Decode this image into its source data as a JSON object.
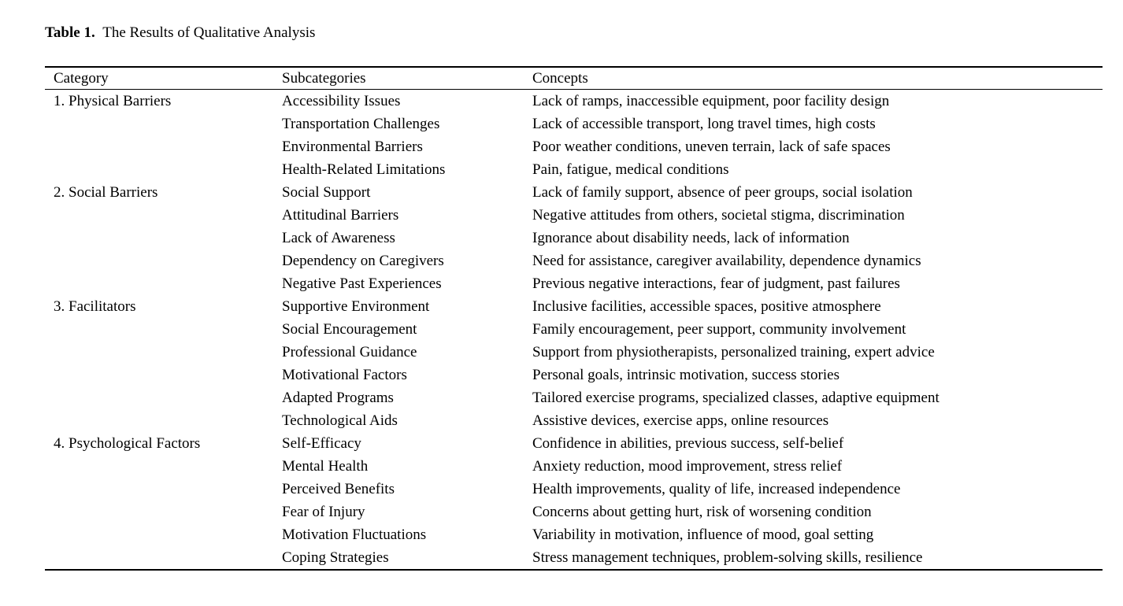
{
  "caption": {
    "label": "Table 1.",
    "text": "The Results of Qualitative Analysis"
  },
  "colors": {
    "text": "#000000",
    "background": "#ffffff",
    "rule": "#000000"
  },
  "table": {
    "headers": [
      "Category",
      "Subcategories",
      "Concepts"
    ],
    "rows": [
      {
        "category": "1. Physical Barriers",
        "subcategory": "Accessibility Issues",
        "concepts": "Lack of ramps, inaccessible equipment, poor facility design"
      },
      {
        "category": "",
        "subcategory": "Transportation Challenges",
        "concepts": "Lack of accessible transport, long travel times, high costs"
      },
      {
        "category": "",
        "subcategory": "Environmental Barriers",
        "concepts": "Poor weather conditions, uneven terrain, lack of safe spaces"
      },
      {
        "category": "",
        "subcategory": "Health-Related Limitations",
        "concepts": "Pain, fatigue, medical conditions"
      },
      {
        "category": "2. Social Barriers",
        "subcategory": "Social Support",
        "concepts": "Lack of family support, absence of peer groups, social isolation"
      },
      {
        "category": "",
        "subcategory": "Attitudinal Barriers",
        "concepts": "Negative attitudes from others, societal stigma, discrimination"
      },
      {
        "category": "",
        "subcategory": "Lack of Awareness",
        "concepts": "Ignorance about disability needs, lack of information"
      },
      {
        "category": "",
        "subcategory": "Dependency on Caregivers",
        "concepts": "Need for assistance, caregiver availability, dependence dynamics"
      },
      {
        "category": "",
        "subcategory": "Negative Past Experiences",
        "concepts": "Previous negative interactions, fear of judgment, past failures"
      },
      {
        "category": "3. Facilitators",
        "subcategory": "Supportive Environment",
        "concepts": "Inclusive facilities, accessible spaces, positive atmosphere"
      },
      {
        "category": "",
        "subcategory": "Social Encouragement",
        "concepts": "Family encouragement, peer support, community involvement"
      },
      {
        "category": "",
        "subcategory": "Professional Guidance",
        "concepts": "Support from physiotherapists, personalized training, expert advice"
      },
      {
        "category": "",
        "subcategory": "Motivational Factors",
        "concepts": "Personal goals, intrinsic motivation, success stories"
      },
      {
        "category": "",
        "subcategory": "Adapted Programs",
        "concepts": "Tailored exercise programs, specialized classes, adaptive equipment"
      },
      {
        "category": "",
        "subcategory": "Technological Aids",
        "concepts": "Assistive devices, exercise apps, online resources"
      },
      {
        "category": "4. Psychological Factors",
        "subcategory": "Self-Efficacy",
        "concepts": "Confidence in abilities, previous success, self-belief"
      },
      {
        "category": "",
        "subcategory": "Mental Health",
        "concepts": "Anxiety reduction, mood improvement, stress relief"
      },
      {
        "category": "",
        "subcategory": "Perceived Benefits",
        "concepts": "Health improvements, quality of life, increased independence"
      },
      {
        "category": "",
        "subcategory": "Fear of Injury",
        "concepts": "Concerns about getting hurt, risk of worsening condition"
      },
      {
        "category": "",
        "subcategory": "Motivation Fluctuations",
        "concepts": "Variability in motivation, influence of mood, goal setting"
      },
      {
        "category": "",
        "subcategory": "Coping Strategies",
        "concepts": "Stress management techniques, problem-solving skills, resilience"
      }
    ]
  }
}
